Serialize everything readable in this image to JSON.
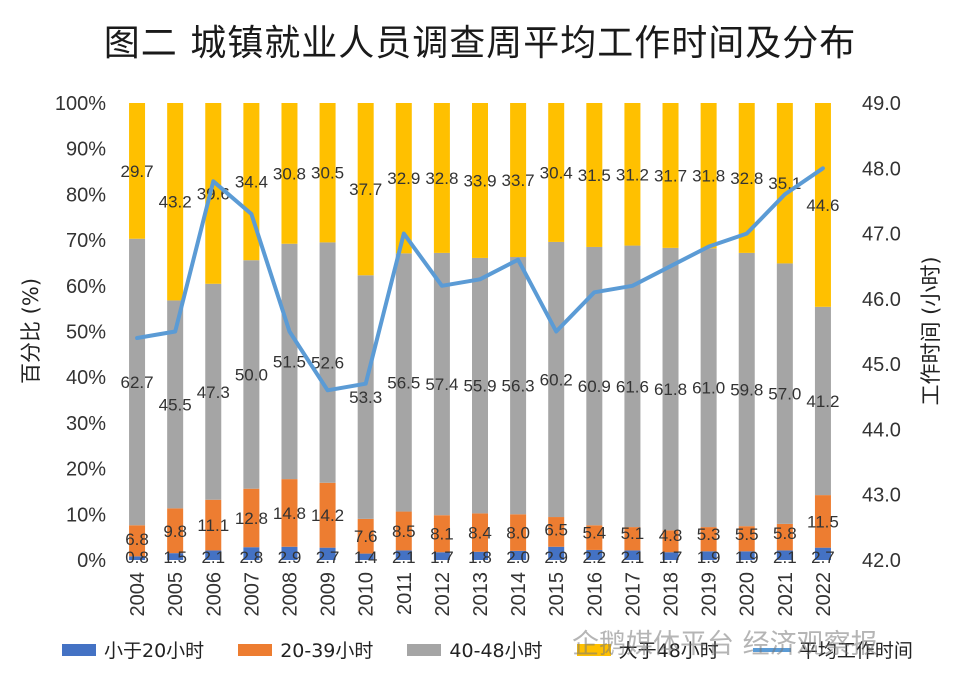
{
  "chart_data": {
    "type": "bar",
    "title": "图二 城镇就业人员调查周平均工作时间及分布",
    "ylabel": "百分比 (%)",
    "y2label": "工作时间 (小时)",
    "ylim": [
      0,
      100
    ],
    "y2lim": [
      42.0,
      49.0
    ],
    "yticks": [
      "0%",
      "10%",
      "20%",
      "30%",
      "40%",
      "50%",
      "60%",
      "70%",
      "80%",
      "90%",
      "100%"
    ],
    "y2ticks": [
      "42.0",
      "43.0",
      "44.0",
      "45.0",
      "46.0",
      "47.0",
      "48.0",
      "49.0"
    ],
    "categories": [
      "2004",
      "2005",
      "2006",
      "2007",
      "2008",
      "2009",
      "2010",
      "2011",
      "2012",
      "2013",
      "2014",
      "2015",
      "2016",
      "2017",
      "2018",
      "2019",
      "2020",
      "2021",
      "2022"
    ],
    "series": [
      {
        "name": "小于20小时",
        "color": "#4472c4",
        "values": [
          0.8,
          1.5,
          2.1,
          2.8,
          2.9,
          2.7,
          1.4,
          2.1,
          1.7,
          1.8,
          2.0,
          2.9,
          2.2,
          2.1,
          1.7,
          1.9,
          1.9,
          2.1,
          2.7
        ],
        "labels": [
          "0.8",
          "1.5",
          "2.1",
          "2.8",
          "2.9",
          "2.7",
          "1.4",
          "2.1",
          "1.7",
          "1.8",
          "2.0",
          "2.9",
          "2.2",
          "2.1",
          "1.7",
          "1.9",
          "1.9",
          "2.1",
          "2.7"
        ]
      },
      {
        "name": "20-39小时",
        "color": "#ed7d31",
        "values": [
          6.8,
          9.8,
          11.1,
          12.8,
          14.8,
          14.2,
          7.6,
          8.5,
          8.1,
          8.4,
          8.0,
          6.5,
          5.4,
          5.1,
          4.8,
          5.3,
          5.5,
          5.8,
          11.5
        ],
        "labels": [
          "6.8",
          "9.8",
          "11.1",
          "12.8",
          "14.8",
          "14.2",
          "7.6",
          "8.5",
          "8.1",
          "8.4",
          "8.0",
          "6.5",
          "5.4",
          "5.1",
          "4.8",
          "5.3",
          "5.5",
          "5.8",
          "11.5"
        ]
      },
      {
        "name": "40-48小时",
        "color": "#a5a5a5",
        "values": [
          62.7,
          45.5,
          47.3,
          50.0,
          51.5,
          52.6,
          53.3,
          56.5,
          57.4,
          55.9,
          56.3,
          60.2,
          60.9,
          61.6,
          61.8,
          61.0,
          59.8,
          57.0,
          41.2
        ],
        "labels": [
          "62.7",
          "45.5",
          "47.3",
          "50.0",
          "51.5",
          "52.6",
          "53.3",
          "56.5",
          "57.4",
          "55.9",
          "56.3",
          "60.2",
          "60.9",
          "61.6",
          "61.8",
          "61.0",
          "59.8",
          "57.0",
          "41.2"
        ]
      },
      {
        "name": "大于48小时",
        "color": "#ffc000",
        "values": [
          29.7,
          43.2,
          39.6,
          34.4,
          30.8,
          30.5,
          37.7,
          32.9,
          32.8,
          33.9,
          33.7,
          30.4,
          31.5,
          31.2,
          31.7,
          31.8,
          32.8,
          35.1,
          44.6
        ],
        "labels": [
          "29.7",
          "43.2",
          "39.6",
          "34.4",
          "30.8",
          "30.5",
          "37.7",
          "32.9",
          "32.8",
          "33.9",
          "33.7",
          "30.4",
          "31.5",
          "31.2",
          "31.7",
          "31.8",
          "32.8",
          "35.1",
          "44.6"
        ]
      }
    ],
    "line": {
      "name": "平均工作时间",
      "axis": "right",
      "color": "#5b9bd5",
      "values": [
        45.4,
        45.5,
        47.8,
        47.3,
        45.5,
        44.6,
        44.7,
        47.0,
        46.2,
        46.3,
        46.6,
        45.5,
        46.1,
        46.2,
        46.5,
        46.8,
        47.0,
        47.6,
        48.0
      ]
    },
    "legend": [
      "小于20小时",
      "20-39小时",
      "40-48小时",
      "大于48小时",
      "平均工作时间"
    ],
    "legend_position": "bottom"
  },
  "watermark": "企鹅媒体平台 经济观察报"
}
